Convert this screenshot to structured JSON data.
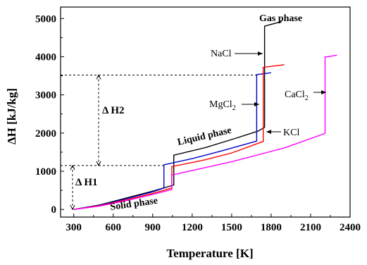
{
  "chart_data": {
    "type": "line",
    "title": "",
    "xlabel": "Temperature [K]",
    "ylabel": "ΔH [kJ/kg]",
    "xlim": [
      200,
      2400
    ],
    "ylim": [
      -200,
      5300
    ],
    "xticks": [
      300,
      600,
      900,
      1200,
      1500,
      1800,
      2100,
      2400
    ],
    "yticks": [
      0,
      1000,
      2000,
      3000,
      4000,
      5000
    ],
    "grid": false,
    "legend": "none",
    "series": [
      {
        "name": "NaCl",
        "color": "#000000",
        "points": [
          [
            300,
            0
          ],
          [
            500,
            120
          ],
          [
            700,
            300
          ],
          [
            900,
            480
          ],
          [
            1060,
            640
          ],
          [
            1060,
            1420
          ],
          [
            1300,
            1620
          ],
          [
            1500,
            1830
          ],
          [
            1700,
            2050
          ],
          [
            1750,
            2150
          ],
          [
            1750,
            4800
          ],
          [
            1880,
            4920
          ]
        ]
      },
      {
        "name": "MgCl2",
        "color": "#0000cc",
        "points": [
          [
            300,
            0
          ],
          [
            500,
            110
          ],
          [
            700,
            280
          ],
          [
            900,
            460
          ],
          [
            985,
            560
          ],
          [
            985,
            1170
          ],
          [
            1200,
            1330
          ],
          [
            1400,
            1510
          ],
          [
            1690,
            1790
          ],
          [
            1690,
            3530
          ],
          [
            1800,
            3580
          ]
        ]
      },
      {
        "name": "KCl",
        "color": "#ff0000",
        "points": [
          [
            300,
            0
          ],
          [
            500,
            100
          ],
          [
            700,
            250
          ],
          [
            900,
            420
          ],
          [
            1045,
            560
          ],
          [
            1045,
            1120
          ],
          [
            1300,
            1300
          ],
          [
            1500,
            1480
          ],
          [
            1740,
            1780
          ],
          [
            1740,
            3720
          ],
          [
            1900,
            3790
          ]
        ]
      },
      {
        "name": "CaCl2",
        "color": "#ff00ff",
        "points": [
          [
            300,
            0
          ],
          [
            500,
            90
          ],
          [
            700,
            230
          ],
          [
            900,
            390
          ],
          [
            1045,
            520
          ],
          [
            1045,
            900
          ],
          [
            1500,
            1250
          ],
          [
            1900,
            1610
          ],
          [
            2210,
            1990
          ],
          [
            2210,
            3990
          ],
          [
            2300,
            4040
          ]
        ]
      }
    ],
    "annotations": {
      "gas_phase": "Gas phase",
      "liquid_phase": "Liquid phase",
      "solid_phase": "Solid phase",
      "nacl": "NaCl",
      "mgcl2": "MgCl",
      "mgcl2_sub": "2",
      "cacl2": "CaCl",
      "cacl2_sub": "2",
      "kcl": "KCl",
      "dh1": "Δ H1",
      "dh2": "Δ H2",
      "dh1_range": [
        0,
        1150
      ],
      "dh2_range": [
        1150,
        3520
      ]
    }
  }
}
